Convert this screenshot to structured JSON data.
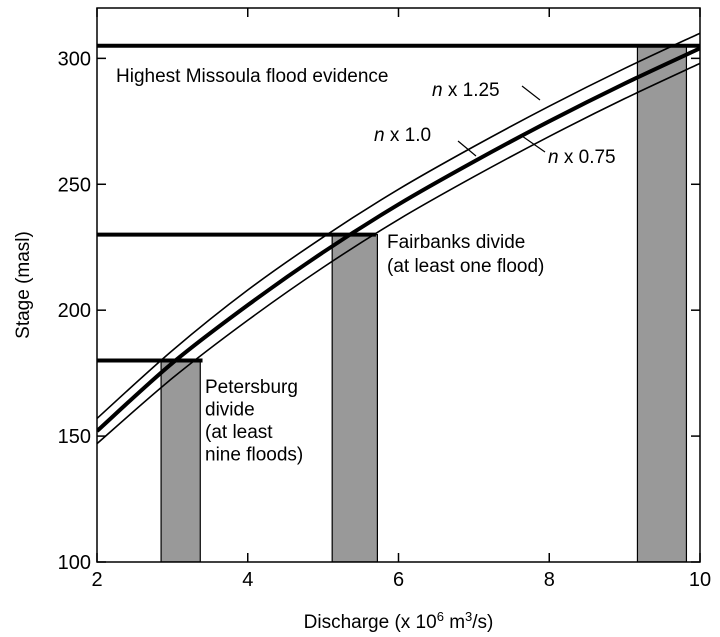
{
  "chart_data": {
    "type": "line",
    "xlabel": "Discharge (x 10^6 m^3/s)",
    "xlabel_parts": [
      "Discharge (x 10",
      "6",
      " m",
      "3",
      "/s)"
    ],
    "ylabel": "Stage (masl)",
    "xlim": [
      2,
      10
    ],
    "ylim": [
      100,
      320
    ],
    "xticks": [
      2,
      4,
      6,
      8,
      10
    ],
    "yticks": [
      100,
      150,
      200,
      250,
      300
    ],
    "grid": false,
    "series": [
      {
        "name": "n x 1.25",
        "label_parts": [
          "n",
          " x 1.25"
        ],
        "x": [
          2,
          3,
          4,
          5,
          6,
          7,
          8,
          9,
          10
        ],
        "y": [
          157,
          184,
          208,
          229,
          248,
          265,
          281,
          296,
          310
        ]
      },
      {
        "name": "n x 1.0",
        "label_parts": [
          "n",
          " x 1.0"
        ],
        "x": [
          2,
          3,
          4,
          5,
          6,
          7,
          8,
          9,
          10
        ],
        "y": [
          152,
          179,
          202,
          223,
          242,
          259,
          275,
          290,
          304
        ]
      },
      {
        "name": "n x 0.75",
        "label_parts": [
          "n",
          " x 0.75"
        ],
        "x": [
          2,
          3,
          4,
          5,
          6,
          7,
          8,
          9,
          10
        ],
        "y": [
          147,
          173,
          196,
          217,
          236,
          253,
          269,
          284,
          298
        ]
      }
    ],
    "stage_levels": [
      {
        "y": 305,
        "x_start": 2,
        "x_end": 10,
        "label": [
          "Highest Missoula flood evidence"
        ]
      },
      {
        "y": 230,
        "x_start": 2,
        "x_end": 5.7,
        "label": [
          "Fairbanks divide",
          "(at least one flood)"
        ]
      },
      {
        "y": 180,
        "x_start": 2,
        "x_end": 3.4,
        "label": [
          "Petersburg",
          "divide",
          "(at least",
          "nine floods)"
        ]
      }
    ],
    "discharge_ranges": [
      {
        "x_min": 2.85,
        "x_max": 3.37,
        "y_top": 180
      },
      {
        "x_min": 5.12,
        "x_max": 5.72,
        "y_top": 230
      },
      {
        "x_min": 9.17,
        "x_max": 9.82,
        "y_top": 305
      }
    ],
    "colors": {
      "shading": "#999999",
      "lines": "#000000"
    }
  }
}
